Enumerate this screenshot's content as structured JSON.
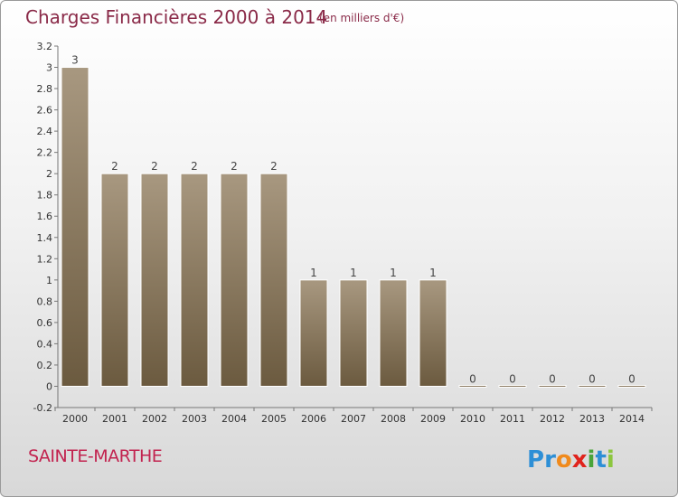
{
  "header": {
    "title": "Charges Financières 2000 à 2014",
    "subtitle": "(en milliers d'€)"
  },
  "footer": {
    "town": "SAINTE-MARTHE",
    "logo": "Proxiti"
  },
  "colors": {
    "title": "#8a2a48",
    "town": "#c2234f",
    "bar_top": "#a89880",
    "bar_bottom": "#6b5a3f"
  },
  "chart_data": {
    "type": "bar",
    "title": "Charges Financières 2000 à 2014",
    "subtitle": "(en milliers d'€)",
    "categories": [
      "2000",
      "2001",
      "2002",
      "2003",
      "2004",
      "2005",
      "2006",
      "2007",
      "2008",
      "2009",
      "2010",
      "2011",
      "2012",
      "2013",
      "2014"
    ],
    "values": [
      3,
      2,
      2,
      2,
      2,
      2,
      1,
      1,
      1,
      1,
      0,
      0,
      0,
      0,
      0
    ],
    "data_labels": [
      "3",
      "2",
      "2",
      "2",
      "2",
      "2",
      "1",
      "1",
      "1",
      "1",
      "0",
      "0",
      "0",
      "0",
      "0"
    ],
    "ylim": [
      -0.2,
      3.2
    ],
    "yticks": [
      "-0.2",
      "0",
      "0.2",
      "0.4",
      "0.6",
      "0.8",
      "1",
      "1.2",
      "1.4",
      "1.6",
      "1.8",
      "2",
      "2.2",
      "2.4",
      "2.6",
      "2.8",
      "3",
      "3.2"
    ],
    "grid": false,
    "legend": "none"
  }
}
